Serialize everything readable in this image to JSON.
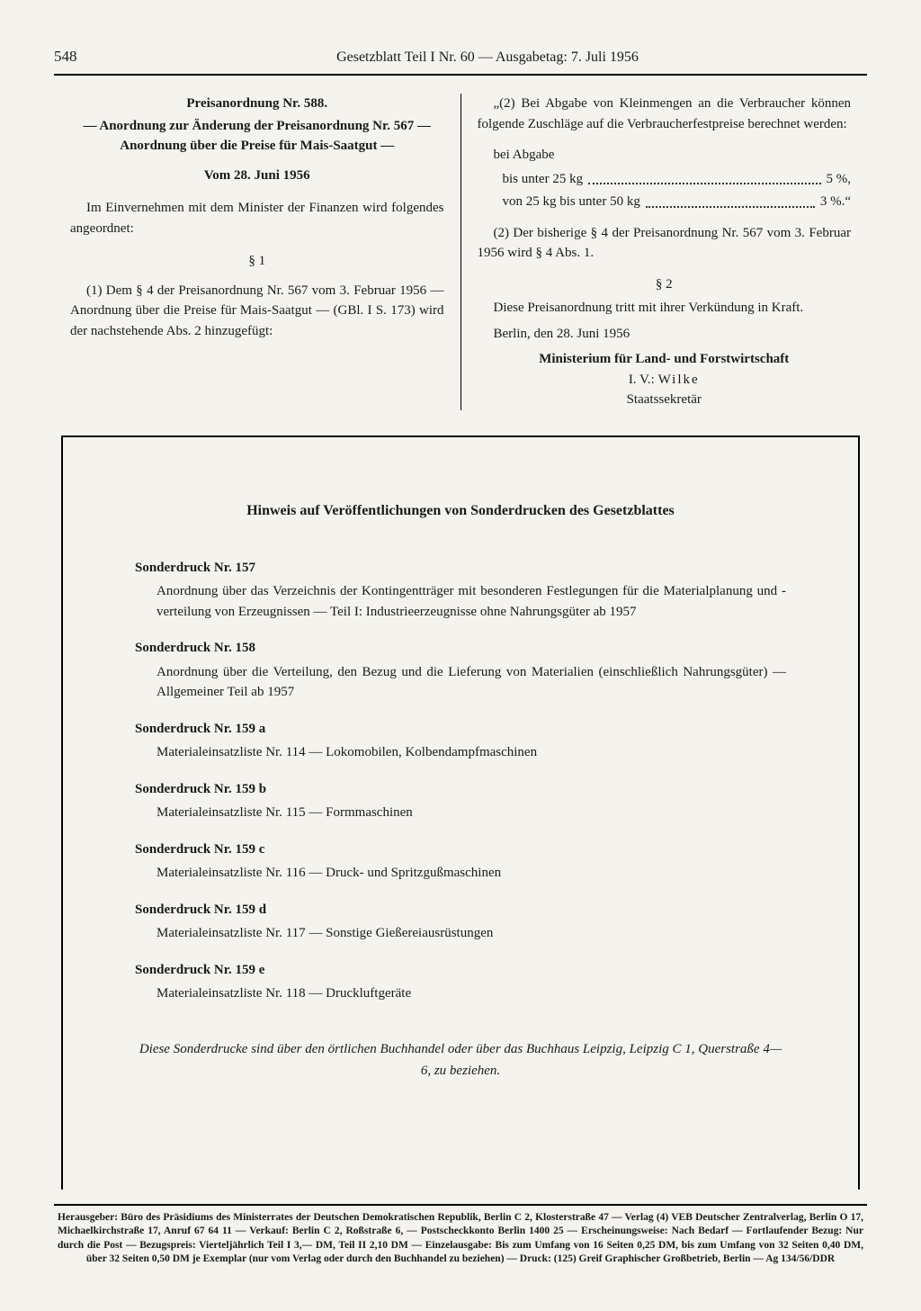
{
  "header": {
    "page_number": "548",
    "title": "Gesetzblatt Teil I Nr. 60 — Ausgabetag: 7. Juli 1956"
  },
  "ordinance": {
    "title1": "Preisanordnung Nr. 588.",
    "title2": "— Anordnung zur Änderung der Preisanordnung Nr. 567 — Anordnung über die Preise für Mais-Saatgut —",
    "date": "Vom 28. Juni 1956",
    "intro": "Im Einvernehmen mit dem Minister der Finanzen wird folgendes angeordnet:",
    "s1_label": "§ 1",
    "s1_p1": "(1) Dem § 4 der Preisanordnung Nr. 567 vom 3. Februar 1956 — Anordnung über die Preise für Mais-Saatgut — (GBl. I S. 173) wird der nachstehende Abs. 2 hinzugefügt:",
    "quote_intro": "„(2) Bei Abgabe von Kleinmengen an die Verbraucher können folgende Zuschläge auf die Verbraucherfestpreise berechnet werden:",
    "abgabe_label": "bei Abgabe",
    "rows": [
      {
        "label": "bis unter 25 kg",
        "value": "5 %,"
      },
      {
        "label": "von 25 kg bis unter 50 kg",
        "value": "3 %.“"
      }
    ],
    "s1_p2": "(2) Der bisherige § 4 der Preisanordnung Nr. 567 vom 3. Februar 1956 wird § 4 Abs. 1.",
    "s2_label": "§ 2",
    "s2_p1": "Diese Preisanordnung tritt mit ihrer Verkündung in Kraft.",
    "place_date": "Berlin, den 28. Juni 1956",
    "ministry": "Ministerium für Land- und Forstwirtschaft",
    "sig_prefix": "I. V.:",
    "sig_name": "Wilke",
    "sig_role": "Staatssekretär"
  },
  "notice": {
    "title": "Hinweis auf Veröffentlichungen von Sonderdrucken des Gesetzblattes",
    "items": [
      {
        "head": "Sonderdruck Nr. 157",
        "body": "Anordnung über das Verzeichnis der Kontingentträger mit besonderen Festlegungen für die Materialplanung und -verteilung von Erzeugnissen — Teil I: Industrieerzeugnisse ohne Nahrungsgüter ab 1957"
      },
      {
        "head": "Sonderdruck Nr. 158",
        "body": "Anordnung über die Verteilung, den Bezug und die Lieferung von Materialien (einschließlich Nahrungsgüter) — Allgemeiner Teil ab 1957"
      },
      {
        "head": "Sonderdruck Nr. 159 a",
        "body": "Materialeinsatzliste Nr. 114 — Lokomobilen, Kolbendampfmaschinen"
      },
      {
        "head": "Sonderdruck Nr. 159 b",
        "body": "Materialeinsatzliste Nr. 115 — Formmaschinen"
      },
      {
        "head": "Sonderdruck Nr. 159 c",
        "body": "Materialeinsatzliste Nr. 116 — Druck- und Spritzgußmaschinen"
      },
      {
        "head": "Sonderdruck Nr. 159 d",
        "body": "Materialeinsatzliste Nr. 117 — Sonstige Gießereiausrüstungen"
      },
      {
        "head": "Sonderdruck Nr. 159 e",
        "body": "Materialeinsatzliste Nr. 118 — Druckluftgeräte"
      }
    ],
    "footer": "Diese Sonderdrucke sind über den örtlichen Buchhandel oder über das Buchhaus Leipzig, Leipzig C 1, Querstraße 4—6, zu beziehen."
  },
  "imprint": "Herausgeber: Büro des Präsidiums des Ministerrates der Deutschen Demokratischen Republik, Berlin C 2, Klosterstraße 47 — Verlag (4) VEB Deutscher Zentralverlag, Berlin O 17, Michaelkirchstraße 17, Anruf 67 64 11 — Verkauf: Berlin C 2, Roßstraße 6, — Postscheckkonto Berlin 1400 25 — Erscheinungsweise: Nach Bedarf — Fortlaufender Bezug: Nur durch die Post — Bezugspreis: Vierteljährlich Teil I 3,— DM, Teil II 2,10 DM — Einzelausgabe: Bis zum Umfang von 16 Seiten 0,25 DM, bis zum Umfang von 32 Seiten 0,40 DM, über 32 Seiten 0,50 DM je Exemplar (nur vom Verlag oder durch den Buchhandel zu beziehen) — Druck: (125) Greif Graphischer Großbetrieb, Berlin — Ag 134/56/DDR"
}
